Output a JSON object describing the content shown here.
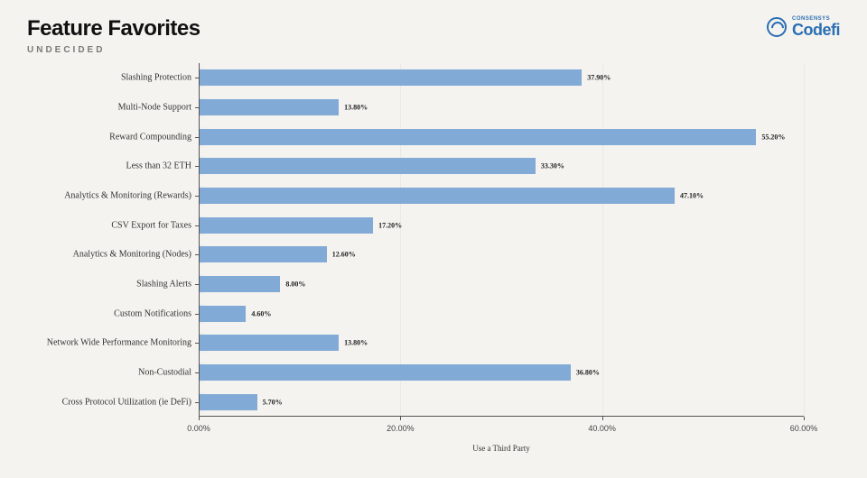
{
  "header": {
    "title": "Feature Favorites",
    "subtitle": "UNDECIDED",
    "logo_sup": "CONSENSYS",
    "logo_main": "Codefi"
  },
  "chart": {
    "type": "horizontal-bar",
    "background_color": "#f5f3ef",
    "bar_color": "#82aad6",
    "axis_color": "#555555",
    "label_font": "Georgia",
    "y_label_fontsize": 10,
    "bar_label_fontsize": 8,
    "tick_label_fontsize": 9,
    "xlim": [
      0,
      60
    ],
    "x_ticks": [
      0,
      20,
      40,
      60
    ],
    "x_tick_labels": [
      "0.00%",
      "20.00%",
      "40.00%",
      "60.00%"
    ],
    "x_title": "Use a Third Party",
    "categories": [
      "Slashing Protection",
      "Multi-Node Support",
      "Reward Compounding",
      "Less than 32 ETH",
      "Analytics & Monitoring (Rewards)",
      "CSV Export for Taxes",
      "Analytics & Monitoring (Nodes)",
      "Slashing Alerts",
      "Custom Notifications",
      "Network Wide Performance Monitoring",
      "Non-Custodial",
      "Cross Protocol Utilization (ie DeFi)"
    ],
    "values": [
      37.9,
      13.8,
      55.2,
      33.3,
      47.1,
      17.2,
      12.6,
      8.0,
      4.6,
      13.8,
      36.8,
      5.7
    ],
    "value_labels": [
      "37.90%",
      "13.80%",
      "55.20%",
      "33.30%",
      "47.10%",
      "17.20%",
      "12.60%",
      "8.00%",
      "4.60%",
      "13.80%",
      "36.80%",
      "5.70%"
    ]
  }
}
